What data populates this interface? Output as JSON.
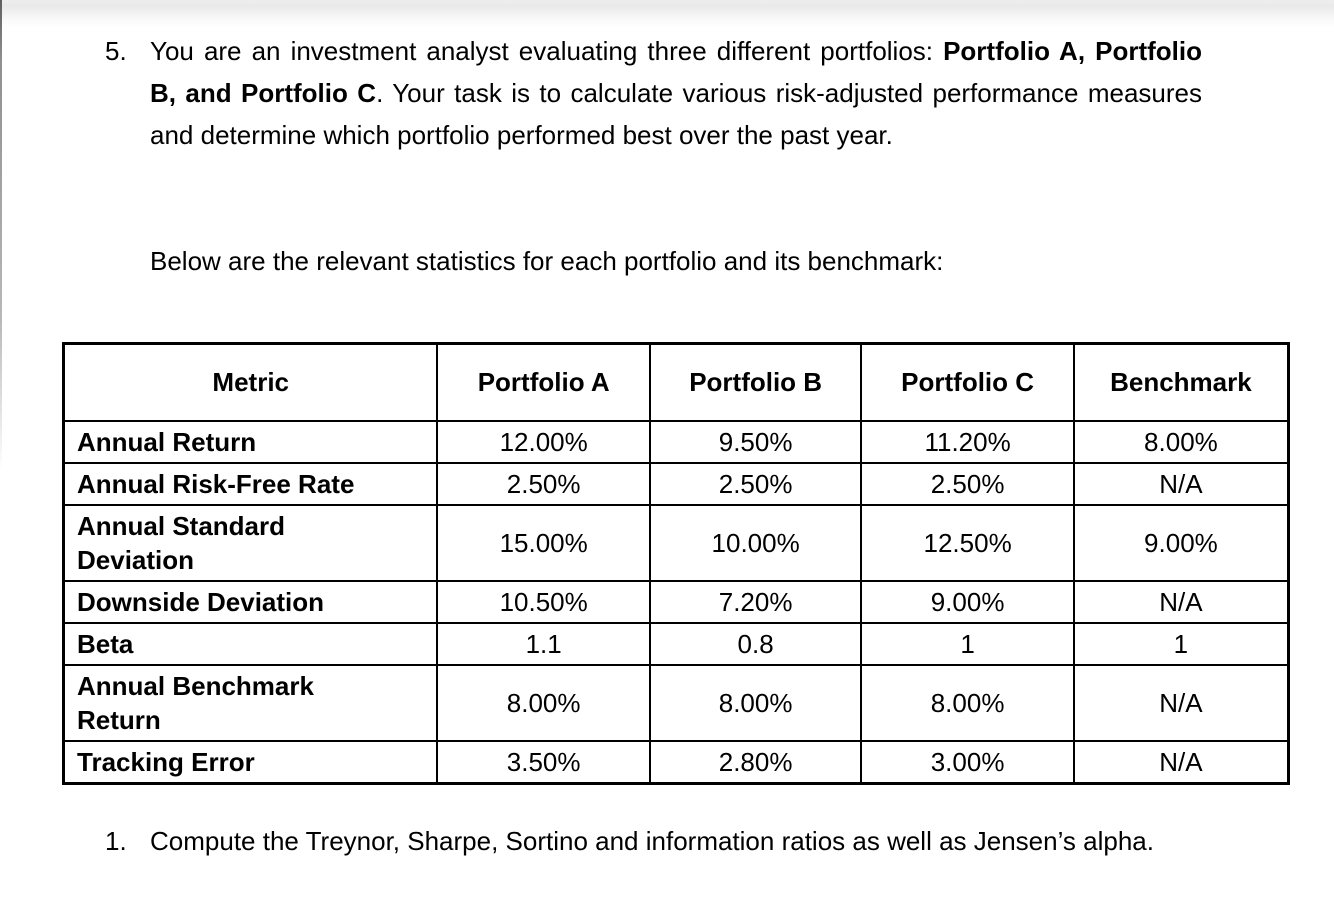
{
  "page": {
    "question_number": "5.",
    "intro_segments": [
      {
        "text": "You are an investment analyst evaluating three different portfolios: ",
        "bold": false
      },
      {
        "text": "Portfolio A, Portfolio B, and Portfolio C",
        "bold": true
      },
      {
        "text": ". Your task is to calculate various risk-adjusted performance measures and determine which portfolio performed best over the past year.",
        "bold": false
      }
    ],
    "table_intro": "Below are the relevant statistics for each portfolio and its benchmark:",
    "subquestion_number": "1.",
    "subquestion_text": "Compute the Treynor, Sharpe, Sortino and information ratios as well as Jensen’s alpha."
  },
  "table": {
    "columns": [
      "Metric",
      "Portfolio A",
      "Portfolio B",
      "Portfolio C",
      "Benchmark"
    ],
    "rows": [
      {
        "metric": "Annual Return",
        "values": [
          "12.00%",
          "9.50%",
          "11.20%",
          "8.00%"
        ]
      },
      {
        "metric": "Annual Risk-Free Rate",
        "values": [
          "2.50%",
          "2.50%",
          "2.50%",
          "N/A"
        ]
      },
      {
        "metric": "Annual Standard\nDeviation",
        "values": [
          "15.00%",
          "10.00%",
          "12.50%",
          "9.00%"
        ]
      },
      {
        "metric": "Downside Deviation",
        "values": [
          "10.50%",
          "7.20%",
          "9.00%",
          "N/A"
        ]
      },
      {
        "metric": "Beta",
        "values": [
          "1.1",
          "0.8",
          "1",
          "1"
        ]
      },
      {
        "metric": "Annual Benchmark\nReturn",
        "values": [
          "8.00%",
          "8.00%",
          "8.00%",
          "N/A"
        ]
      },
      {
        "metric": "Tracking Error",
        "values": [
          "3.50%",
          "2.80%",
          "3.00%",
          "N/A"
        ]
      }
    ],
    "text_color": "#000000",
    "border_color": "#000000"
  }
}
